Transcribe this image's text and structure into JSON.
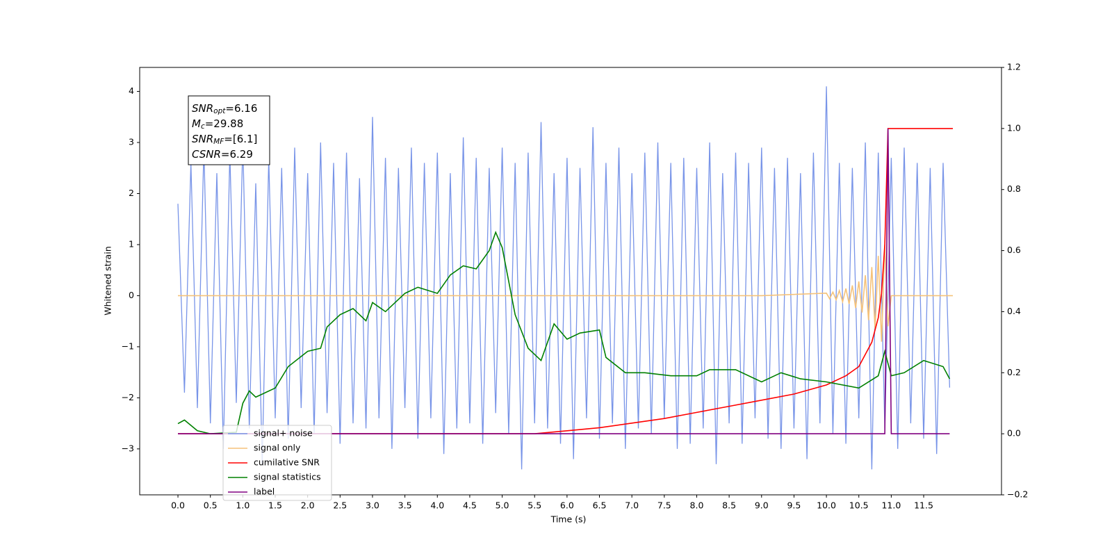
{
  "chart_data": {
    "type": "line",
    "xlabel": "Time (s)",
    "ylabel": "Whitened strain",
    "xlim": [
      -0.59,
      12.7
    ],
    "ylim": [
      -3.9,
      4.47
    ],
    "y2lim": [
      -0.2,
      1.2
    ],
    "xticks": [
      {
        "value": 0,
        "label": "0.0"
      },
      0.5,
      {
        "value": 1,
        "label": "1.0"
      },
      1.5,
      {
        "value": 2,
        "label": "2.0"
      },
      2.5,
      {
        "value": 3,
        "label": "3.0"
      },
      3.5,
      {
        "value": 4,
        "label": "4.0"
      },
      4.5,
      {
        "value": 5,
        "label": "5.0"
      },
      5.5,
      {
        "value": 6,
        "label": "6.0"
      },
      6.5,
      {
        "value": 7,
        "label": "7.0"
      },
      7.5,
      {
        "value": 8,
        "label": "8.0"
      },
      8.5,
      {
        "value": 9,
        "label": "9.0"
      },
      9.5,
      {
        "value": 10,
        "label": "10.0"
      },
      10.5,
      {
        "value": 11,
        "label": "11.0"
      },
      11.5
    ],
    "yticks": [
      {
        "value": -3,
        "label": "−3"
      },
      {
        "value": -2,
        "label": "−2"
      },
      {
        "value": -1,
        "label": "−1"
      },
      0,
      1,
      2,
      3,
      4
    ],
    "y2ticks": [
      {
        "value": -0.2,
        "label": "−0.2"
      },
      {
        "value": 0,
        "label": "0.0"
      },
      0.2,
      0.4,
      0.6,
      0.8,
      {
        "value": 1,
        "label": "1.0"
      },
      1.2
    ],
    "annotation": [
      {
        "main": "SNR",
        "sub": "opt",
        "rest": "=6.16"
      },
      {
        "main": "M",
        "sub": "c",
        "rest": "=29.88"
      },
      {
        "main": "SNR",
        "sub": "MF",
        "rest": "=[6.1]"
      },
      {
        "main": "CSNR",
        "sub": "",
        "rest": "=6.29"
      }
    ],
    "series": [
      {
        "name": "signal+ noise",
        "color": "#7894e8",
        "axis": "y",
        "x": [
          0,
          0.1,
          0.2,
          0.3,
          0.4,
          0.5,
          0.6,
          0.7,
          0.8,
          0.9,
          1,
          1.1,
          1.2,
          1.3,
          1.4,
          1.5,
          1.6,
          1.7,
          1.8,
          1.9,
          2,
          2.1,
          2.2,
          2.3,
          2.4,
          2.5,
          2.6,
          2.7,
          2.8,
          2.9,
          3,
          3.1,
          3.2,
          3.3,
          3.4,
          3.5,
          3.6,
          3.7,
          3.8,
          3.9,
          4,
          4.1,
          4.2,
          4.3,
          4.4,
          4.5,
          4.6,
          4.7,
          4.8,
          4.9,
          5,
          5.1,
          5.2,
          5.3,
          5.4,
          5.5,
          5.6,
          5.7,
          5.8,
          5.9,
          6,
          6.1,
          6.2,
          6.3,
          6.4,
          6.5,
          6.6,
          6.7,
          6.8,
          6.9,
          7,
          7.1,
          7.2,
          7.3,
          7.4,
          7.5,
          7.6,
          7.7,
          7.8,
          7.9,
          8,
          8.1,
          8.2,
          8.3,
          8.4,
          8.5,
          8.6,
          8.7,
          8.8,
          8.9,
          9,
          9.1,
          9.2,
          9.3,
          9.4,
          9.5,
          9.6,
          9.7,
          9.8,
          9.9,
          10,
          10.1,
          10.2,
          10.3,
          10.4,
          10.5,
          10.6,
          10.7,
          10.8,
          10.9,
          11,
          11.1,
          11.2,
          11.3,
          11.4,
          11.5,
          11.6,
          11.7,
          11.8,
          11.9
        ],
        "values": [
          1.8,
          -1.9,
          2.6,
          -2.2,
          2.9,
          -2.5,
          2.4,
          -3.0,
          2.8,
          -2.1,
          3.0,
          -2.6,
          2.2,
          -3.3,
          2.7,
          -2.4,
          2.5,
          -2.8,
          2.9,
          -2.2,
          2.4,
          -2.7,
          3.0,
          -2.3,
          2.6,
          -2.9,
          2.8,
          -2.5,
          2.3,
          -2.6,
          3.5,
          -2.4,
          2.7,
          -3.0,
          2.5,
          -2.2,
          2.9,
          -2.8,
          2.6,
          -2.4,
          2.8,
          -3.1,
          2.4,
          -2.6,
          3.1,
          -2.5,
          2.7,
          -2.9,
          2.5,
          -2.3,
          2.9,
          -2.7,
          2.6,
          -3.4,
          2.8,
          -2.5,
          3.4,
          -2.6,
          2.4,
          -2.9,
          2.7,
          -3.2,
          2.5,
          -2.4,
          3.3,
          -2.8,
          2.6,
          -2.5,
          2.9,
          -3.0,
          2.4,
          -2.6,
          2.8,
          -2.7,
          3.0,
          -2.4,
          2.6,
          -3.0,
          2.7,
          -2.9,
          2.5,
          -2.6,
          3.0,
          -3.3,
          2.4,
          -2.5,
          2.8,
          -2.9,
          2.6,
          -2.4,
          2.9,
          -2.8,
          2.5,
          -3.0,
          2.7,
          -2.6,
          2.4,
          -3.2,
          2.8,
          -2.5,
          4.1,
          -2.7,
          2.6,
          -2.9,
          2.5,
          -2.4,
          3.0,
          -3.4,
          2.8,
          -2.6,
          2.7,
          -3.0,
          2.9,
          -2.5,
          2.6,
          -2.8,
          2.5,
          -3.1,
          2.6,
          -1.8
        ]
      },
      {
        "name": "signal only",
        "color": "#f5c27a",
        "axis": "y",
        "x": [
          0,
          9,
          10,
          10.05,
          10.1,
          10.15,
          10.2,
          10.25,
          10.3,
          10.35,
          10.4,
          10.45,
          10.5,
          10.55,
          10.6,
          10.65,
          10.7,
          10.75,
          10.8,
          10.85,
          10.9,
          10.95,
          11,
          11.95
        ],
        "values": [
          0,
          0,
          0.05,
          -0.06,
          0.07,
          -0.08,
          0.1,
          -0.12,
          0.14,
          -0.16,
          0.2,
          -0.24,
          0.28,
          -0.33,
          0.4,
          -0.48,
          0.56,
          -0.66,
          0.78,
          -0.9,
          1.0,
          -0.6,
          0,
          0
        ]
      },
      {
        "name": "cumilative SNR",
        "color": "red",
        "axis": "y2",
        "x": [
          0,
          5.5,
          6,
          6.5,
          7,
          7.5,
          8,
          8.5,
          9,
          9.5,
          10,
          10.3,
          10.5,
          10.7,
          10.8,
          10.85,
          10.9,
          10.95,
          11.95
        ],
        "values": [
          0,
          0,
          0.01,
          0.02,
          0.035,
          0.05,
          0.07,
          0.09,
          0.11,
          0.13,
          0.16,
          0.19,
          0.22,
          0.3,
          0.38,
          0.46,
          0.62,
          1.0,
          1.0
        ]
      },
      {
        "name": "signal statistics",
        "color": "green",
        "axis": "y2",
        "x": [
          0,
          0.1,
          0.3,
          0.5,
          0.9,
          1,
          1.1,
          1.2,
          1.5,
          1.7,
          2,
          2.2,
          2.3,
          2.5,
          2.7,
          2.9,
          3,
          3.2,
          3.5,
          3.7,
          4,
          4.2,
          4.4,
          4.6,
          4.8,
          4.9,
          5,
          5.2,
          5.4,
          5.6,
          5.8,
          6,
          6.2,
          6.5,
          6.6,
          6.9,
          7.2,
          7.6,
          8,
          8.2,
          8.6,
          9,
          9.3,
          9.6,
          10,
          10.5,
          10.8,
          10.9,
          11,
          11.2,
          11.5,
          11.8,
          11.9
        ],
        "values": [
          0.033,
          0.045,
          0.01,
          0.0,
          0.005,
          0.1,
          0.14,
          0.12,
          0.15,
          0.22,
          0.27,
          0.28,
          0.35,
          0.39,
          0.41,
          0.37,
          0.43,
          0.4,
          0.46,
          0.48,
          0.46,
          0.52,
          0.55,
          0.54,
          0.6,
          0.66,
          0.61,
          0.39,
          0.28,
          0.24,
          0.36,
          0.31,
          0.33,
          0.34,
          0.25,
          0.2,
          0.2,
          0.19,
          0.19,
          0.21,
          0.21,
          0.17,
          0.2,
          0.18,
          0.17,
          0.15,
          0.19,
          0.27,
          0.19,
          0.2,
          0.24,
          0.22,
          0.18
        ]
      },
      {
        "name": "label",
        "color": "purple",
        "axis": "y2",
        "x": [
          0,
          10.9,
          10.95,
          11,
          11.9
        ],
        "values": [
          0,
          0,
          1,
          0,
          0
        ]
      }
    ]
  }
}
